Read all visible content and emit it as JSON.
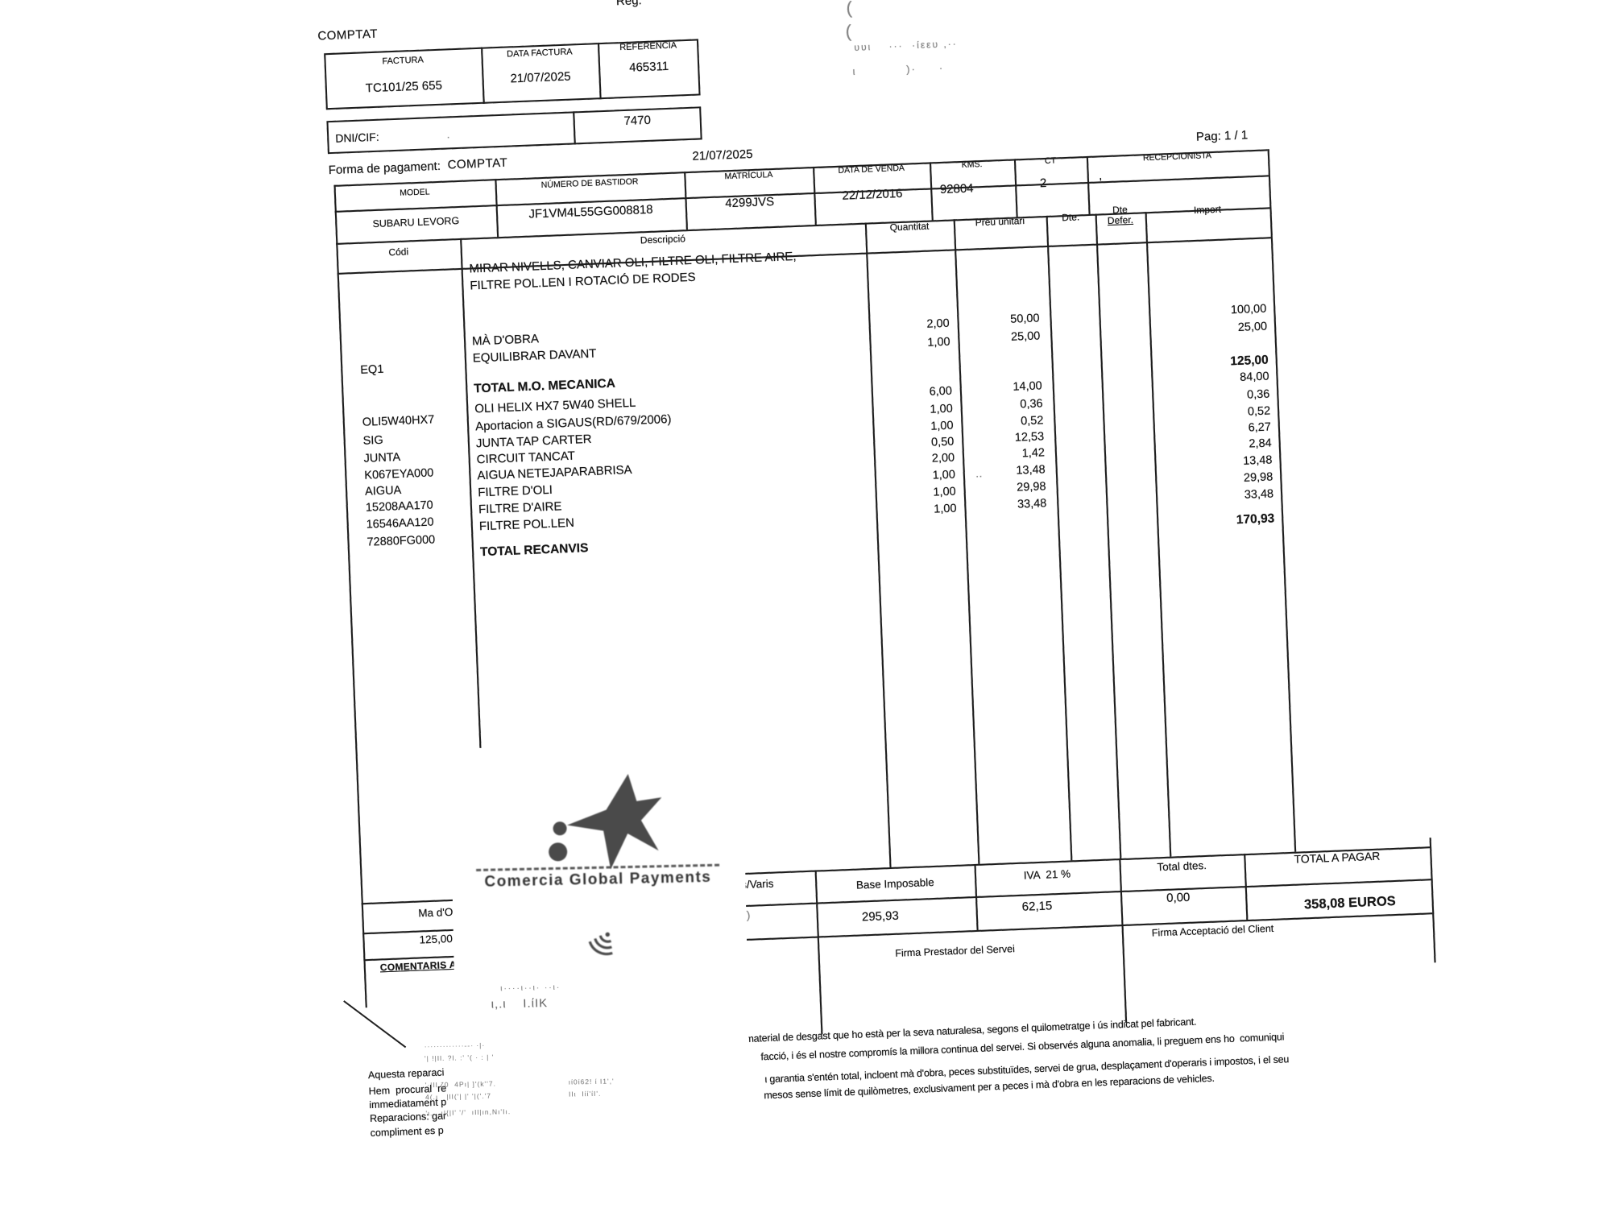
{
  "scan": {
    "reg_label": "Reg.",
    "marks": [
      "(",
      "(",
      "υυι    ···  ·ίεευ ,··",
      "ι           )·     ·"
    ],
    "dni_dot": "·",
    "table_dots": "‥"
  },
  "invoice_header": {
    "payment_type": "COMPTAT",
    "columns": [
      "FACTURA",
      "DATA FACTURA",
      "REFERÈNCIA"
    ],
    "values": [
      "TC101/25 655",
      "21/07/2025",
      "465311"
    ],
    "dni_label": "DNI/CIF:",
    "dni_value": "7470",
    "page": "Pag: 1 / 1",
    "date": "21/07/2025",
    "payment_label": "Forma de pagament:",
    "payment_value": "COMPTAT"
  },
  "vehicle": {
    "columns": [
      "MODEL",
      "NÚMERO DE BASTIDOR",
      "MATRÍCULA",
      "DATA DE VENDA",
      "KMS.",
      "CT",
      "RECEPCIONISTA"
    ],
    "model": "SUBARU LEVORG",
    "vin": "JF1VM4L55GG008818",
    "plate": "4299JVS",
    "sale_date": "22/12/2016",
    "kms": "92804",
    "ct": "2",
    "receptionist_mark": "'"
  },
  "items_header": {
    "codi": "Códi",
    "descripcio": "Descripció",
    "quantitat": "Quantitat",
    "preu": "Preu unitari",
    "dte": "Dte.",
    "dte_defer_1": "Dte",
    "dte_defer_2": "Defer.",
    "import": "Import"
  },
  "invoice_items": {
    "codes": [
      "EQ1",
      "OLI5W40HX7",
      "SIG",
      "JUNTA",
      "K067EYA000",
      "AIGUA",
      "15208AA170",
      "16546AA120",
      "72880FG000"
    ],
    "descriptions": [
      "MIRAR NIVELLS, CANVIAR OLI, FILTRE OLI, FILTRE AIRE,",
      "FILTRE POL.LEN I ROTACIÓ DE RODES",
      "MÀ D'OBRA",
      "EQUILIBRAR DAVANT",
      "TOTAL M.O. MECANICA",
      "OLI HELIX HX7 5W40 SHELL",
      "Aportacion a SIGAUS(RD/679/2006)",
      "JUNTA TAP CARTER",
      "CIRCUIT TANCAT",
      "AIGUA NETEJAPARABRISA",
      "FILTRE D'OLI",
      "FILTRE D'AIRE",
      "FILTRE POL.LEN",
      "TOTAL RECANVIS"
    ],
    "quantities": [
      "2,00",
      "1,00",
      "6,00",
      "1,00",
      "1,00",
      "0,50",
      "2,00",
      "1,00",
      "1,00",
      "1,00"
    ],
    "unit_prices": [
      "50,00",
      "25,00",
      "14,00",
      "0,36",
      "0,52",
      "12,53",
      "1,42",
      "13,48",
      "29,98",
      "33,48"
    ],
    "imports": [
      "100,00",
      "25,00",
      "125,00",
      "84,00",
      "0,36",
      "0,52",
      "6,27",
      "2,84",
      "13,48",
      "29,98",
      "33,48",
      "170,93"
    ]
  },
  "totals": {
    "recanvis_fragment": "s/Varis",
    "recanvis_value_fragment": ")",
    "base_label": "Base Imposable",
    "base_value": "295,93",
    "iva_label": "IVA  21 %",
    "iva_value": "62,15",
    "dtes_label": "Total dtes.",
    "dtes_value": "0,00",
    "total_label": "TOTAL A PAGAR",
    "total_value": "358,08",
    "currency": "EUROS",
    "firma_prestador": "Firma Prestador del Servei",
    "firma_client": "Firma Acceptació del Client"
  },
  "summary_left": {
    "ma_dobra": "Ma d'Obra",
    "ma_dobra_value": "125,00",
    "comentaris": "COMENTARIS AL"
  },
  "fine_print": {
    "left": [
      "Aquesta reparaci",
      "Hem  procural  re",
      "immediatament p",
      "Reparacions: gar",
      "compliment es p"
    ],
    "right": [
      "i material de desgast que ho està per la seva naturalesa, segons el quilometratge i ús indicat pel fabricant.",
      "facció, i és el nostre compromís la millora continua del servei. Si observés alguna anomalia, li preguem ens ho  comuniqui",
      "ι garantia s'entén total, incloent mà d'obra, peces substituïdes, servei de grua, desplaçament d'operaris i impostos, i el seu",
      "mesos sense límit de quilòmetres, exclusivament per a peces i mà d'obra en les reparacions de vehicles."
    ]
  },
  "receipt": {
    "brand": "Comercia Global Payments",
    "line1": "ι····ι··ι· ··ι·",
    "line2": "ι,.ι    Ι.ίΙΚ",
    "addr": [
      "·············--· ·|·",
      "'| !|Il. ?l. :' '( · : | '",
      "'·|Il ζ0  4Pı| ]'(k''7.",
      "4(.ı   |lI('| |' '|('.'7",
      "'ι. ..ı|{|I' '/'  ıIl|ın,Nı'Iı."
    ],
    "right_block": [
      "ıί0ί62! ί Ι1','",
      "IΙι  Ιίί'ίΙ'."
    ]
  }
}
